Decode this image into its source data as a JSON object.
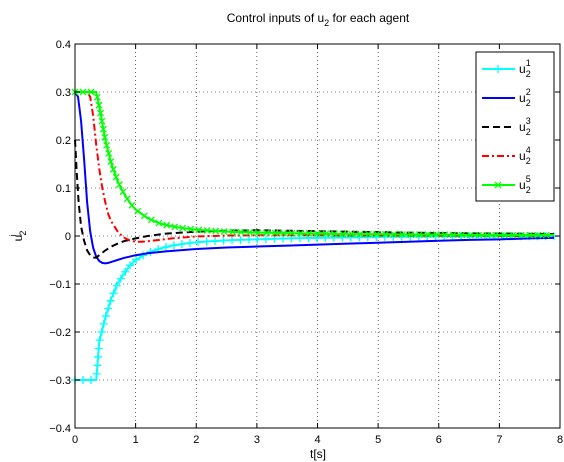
{
  "chart_data": {
    "type": "line",
    "title": "Control inputs of u",
    "title_sub": "2",
    "title_suffix": " for each agent",
    "xlabel": "t[s]",
    "ylabel_main": "u",
    "ylabel_sub": "2",
    "ylabel_sup": "i",
    "xlim": [
      0,
      8
    ],
    "ylim": [
      -0.4,
      0.4
    ],
    "xticks": [
      0,
      1,
      2,
      3,
      4,
      5,
      6,
      7,
      8
    ],
    "yticks": [
      -0.4,
      -0.3,
      -0.2,
      -0.1,
      0,
      0.1,
      0.2,
      0.3,
      0.4
    ],
    "xtick_labels": [
      "0",
      "1",
      "2",
      "3",
      "4",
      "5",
      "6",
      "7",
      "8"
    ],
    "ytick_labels": [
      "−0.4",
      "−0.3",
      "−0.2",
      "−0.1",
      "0",
      "0.1",
      "0.2",
      "0.3",
      "0.4"
    ],
    "grid": true,
    "legend_position": "top-right",
    "series": [
      {
        "name": "u",
        "sub": "2",
        "sup": "1",
        "color": "#00ffff",
        "dash": "",
        "marker": "plus",
        "x": [
          0,
          0.1,
          0.2,
          0.3,
          0.35,
          0.4,
          0.5,
          0.6,
          0.7,
          0.8,
          0.9,
          1.0,
          1.2,
          1.4,
          1.6,
          1.8,
          2.0,
          2.5,
          3.0,
          3.5,
          4.0,
          4.5,
          5.0,
          5.5,
          6.0,
          6.5,
          7.0,
          7.5,
          7.9
        ],
        "y": [
          -0.3,
          -0.3,
          -0.3,
          -0.3,
          -0.3,
          -0.22,
          -0.17,
          -0.13,
          -0.1,
          -0.08,
          -0.062,
          -0.05,
          -0.035,
          -0.026,
          -0.02,
          -0.016,
          -0.013,
          -0.009,
          -0.007,
          -0.005,
          -0.004,
          -0.003,
          -0.002,
          -0.0015,
          -0.001,
          -0.0008,
          -0.0006,
          -0.0005,
          -0.0004
        ]
      },
      {
        "name": "u",
        "sub": "2",
        "sup": "2",
        "color": "#0000ff",
        "dash": "",
        "marker": "none",
        "x": [
          0,
          0.05,
          0.1,
          0.15,
          0.2,
          0.25,
          0.3,
          0.35,
          0.4,
          0.45,
          0.5,
          0.55,
          0.6,
          0.7,
          0.8,
          1.0,
          1.2,
          1.5,
          2.0,
          2.5,
          3.0,
          3.5,
          4.0,
          4.5,
          5.0,
          5.5,
          6.0,
          6.5,
          7.0,
          7.5,
          7.9
        ],
        "y": [
          0.3,
          0.29,
          0.24,
          0.16,
          0.07,
          0.01,
          -0.025,
          -0.043,
          -0.052,
          -0.056,
          -0.057,
          -0.056,
          -0.054,
          -0.05,
          -0.046,
          -0.04,
          -0.036,
          -0.032,
          -0.027,
          -0.024,
          -0.022,
          -0.02,
          -0.018,
          -0.016,
          -0.014,
          -0.012,
          -0.01,
          -0.008,
          -0.007,
          -0.005,
          -0.004
        ]
      },
      {
        "name": "u",
        "sub": "2",
        "sup": "3",
        "color": "#000000",
        "dash": "7,4",
        "marker": "none",
        "x": [
          0,
          0.03,
          0.06,
          0.1,
          0.15,
          0.2,
          0.25,
          0.3,
          0.35,
          0.4,
          0.5,
          0.6,
          0.7,
          0.8,
          1.0,
          1.2,
          1.5,
          2.0,
          2.5,
          3.0,
          3.5,
          4.0,
          4.5,
          5.0,
          6.0,
          7.0,
          7.9
        ],
        "y": [
          0.2,
          0.13,
          0.07,
          0.02,
          -0.01,
          -0.03,
          -0.04,
          -0.045,
          -0.045,
          -0.04,
          -0.03,
          -0.022,
          -0.016,
          -0.011,
          -0.005,
          0.0,
          0.005,
          0.009,
          0.011,
          0.012,
          0.011,
          0.01,
          0.009,
          0.008,
          0.006,
          0.005,
          0.004
        ]
      },
      {
        "name": "u",
        "sub": "2",
        "sup": "4",
        "color": "#ff0000",
        "dash": "7,3,2,3",
        "marker": "none",
        "x": [
          0,
          0.1,
          0.2,
          0.25,
          0.3,
          0.35,
          0.4,
          0.45,
          0.5,
          0.55,
          0.6,
          0.7,
          0.8,
          0.9,
          1.0,
          1.1,
          1.2,
          1.4,
          1.6,
          1.8,
          2.0,
          2.5,
          3.0,
          3.5,
          4.0,
          5.0,
          6.0,
          7.0,
          7.9
        ],
        "y": [
          0.3,
          0.3,
          0.3,
          0.29,
          0.25,
          0.19,
          0.14,
          0.1,
          0.07,
          0.045,
          0.03,
          0.01,
          -0.003,
          -0.009,
          -0.012,
          -0.012,
          -0.011,
          -0.008,
          -0.005,
          -0.003,
          -0.001,
          0.001,
          0.0015,
          0.0015,
          0.0012,
          0.001,
          0.0008,
          0.0006,
          0.0005
        ]
      },
      {
        "name": "u",
        "sub": "2",
        "sup": "5",
        "color": "#00ff00",
        "dash": "",
        "marker": "x",
        "x": [
          0,
          0.1,
          0.2,
          0.3,
          0.35,
          0.4,
          0.5,
          0.6,
          0.7,
          0.8,
          0.9,
          1.0,
          1.2,
          1.4,
          1.6,
          1.8,
          2.0,
          2.5,
          3.0,
          3.5,
          4.0,
          4.5,
          5.0,
          5.5,
          6.0,
          6.5,
          7.0,
          7.5,
          7.9
        ],
        "y": [
          0.3,
          0.3,
          0.3,
          0.3,
          0.3,
          0.27,
          0.2,
          0.15,
          0.115,
          0.09,
          0.07,
          0.055,
          0.037,
          0.026,
          0.02,
          0.016,
          0.013,
          0.009,
          0.007,
          0.006,
          0.005,
          0.004,
          0.004,
          0.003,
          0.003,
          0.002,
          0.002,
          0.002,
          0.002
        ]
      }
    ]
  }
}
